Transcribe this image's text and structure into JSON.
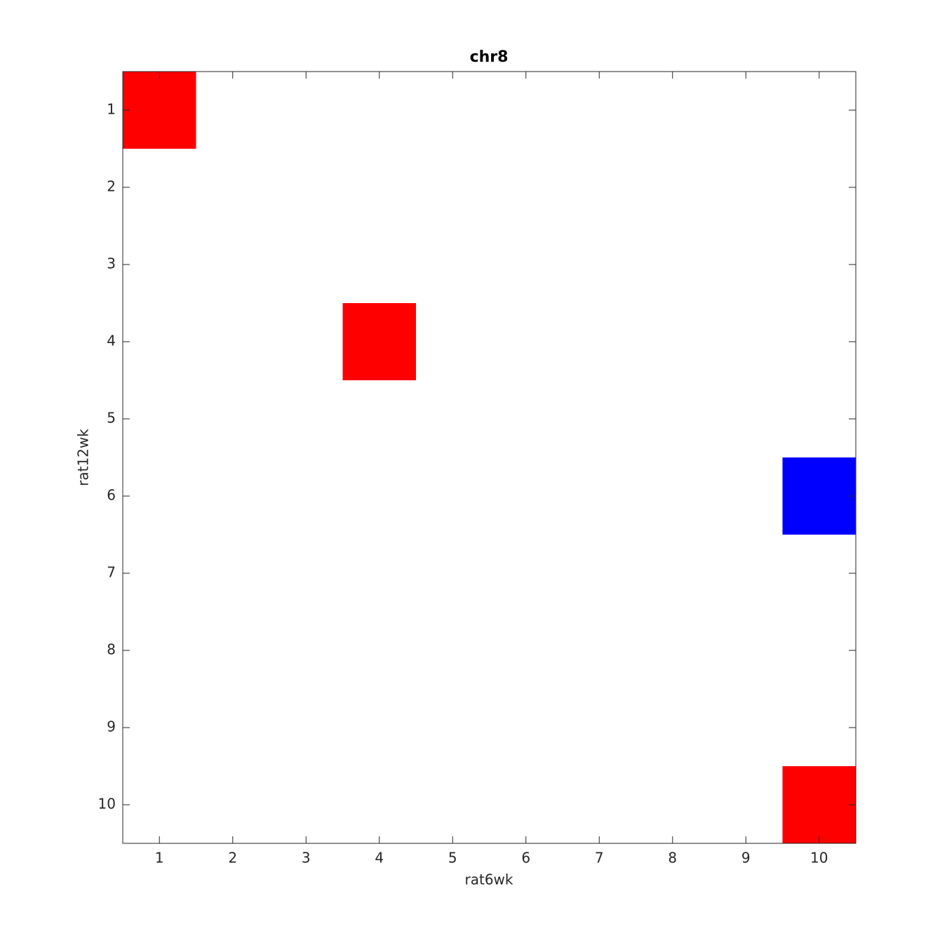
{
  "chart_data": {
    "type": "heatmap",
    "title": "chr8",
    "x_label": "rat6wk",
    "y_label": "rat12wk",
    "x": [
      1,
      2,
      3,
      4,
      5,
      6,
      7,
      8,
      9,
      10
    ],
    "y": [
      1,
      2,
      3,
      4,
      5,
      6,
      7,
      8,
      9,
      10
    ],
    "z": [
      [
        1,
        0,
        0,
        0,
        0,
        0,
        0,
        0,
        0,
        0
      ],
      [
        0,
        0,
        0,
        0,
        0,
        0,
        0,
        0,
        0,
        0
      ],
      [
        0,
        0,
        0,
        0,
        0,
        0,
        0,
        0,
        0,
        0
      ],
      [
        0,
        0,
        0,
        1,
        0,
        0,
        0,
        0,
        0,
        0
      ],
      [
        0,
        0,
        0,
        0,
        0,
        0,
        0,
        0,
        0,
        0
      ],
      [
        0,
        0,
        0,
        0,
        0,
        0,
        0,
        0,
        0,
        -1
      ],
      [
        0,
        0,
        0,
        0,
        0,
        0,
        0,
        0,
        0,
        0
      ],
      [
        0,
        0,
        0,
        0,
        0,
        0,
        0,
        0,
        0,
        0
      ],
      [
        0,
        0,
        0,
        0,
        0,
        0,
        0,
        0,
        0,
        0
      ],
      [
        0,
        0,
        0,
        0,
        0,
        0,
        0,
        0,
        0,
        1
      ]
    ],
    "colormap": [
      "#0000ff",
      "#ffffff",
      "#ff0000"
    ],
    "clim": [
      -1,
      1
    ],
    "xlim": [
      0.5,
      10.5
    ],
    "ylim": [
      0.5,
      10.5
    ],
    "y_reversed": true,
    "xticks": [
      1,
      2,
      3,
      4,
      5,
      6,
      7,
      8,
      9,
      10
    ],
    "yticks": [
      1,
      2,
      3,
      4,
      5,
      6,
      7,
      8,
      9,
      10
    ]
  }
}
